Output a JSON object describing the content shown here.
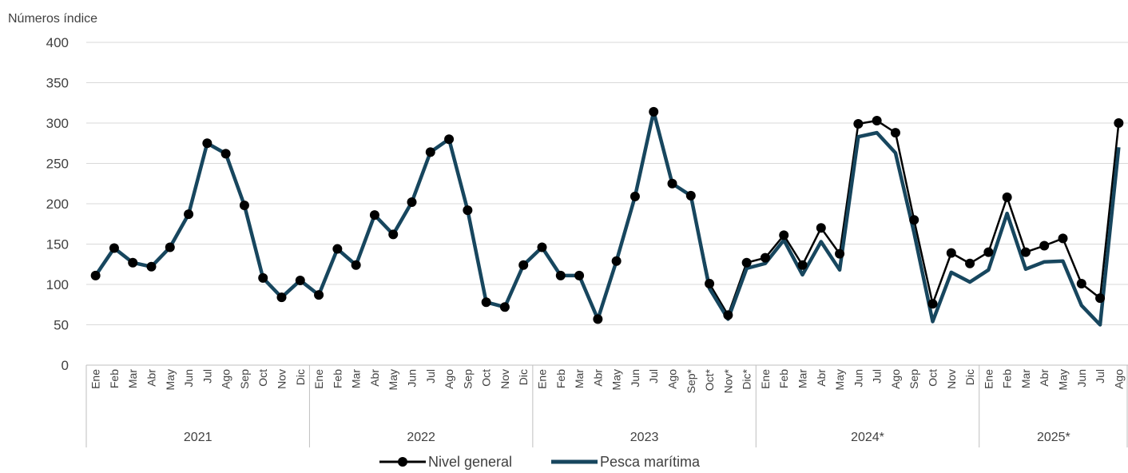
{
  "colors": {
    "nivel_general": "#000000",
    "pesca_maritima": "#17465e",
    "grid": "#d9d9d9",
    "axis_text": "#404040"
  },
  "chart_data": {
    "type": "line",
    "ylabel": "Números índice",
    "ylim": [
      0,
      400
    ],
    "yticks": [
      0,
      50,
      100,
      150,
      200,
      250,
      300,
      350,
      400
    ],
    "grid": "horizontal",
    "legend": "bottom",
    "x": [
      "Ene",
      "Feb",
      "Mar",
      "Abr",
      "May",
      "Jun",
      "Jul",
      "Ago",
      "Sep",
      "Oct",
      "Nov",
      "Dic",
      "Ene",
      "Feb",
      "Mar",
      "Abr",
      "May",
      "Jun",
      "Jul",
      "Ago",
      "Sep",
      "Oct",
      "Nov",
      "Dic",
      "Ene",
      "Feb",
      "Mar",
      "Abr",
      "May",
      "Jun",
      "Jul",
      "Ago",
      "Sep*",
      "Oct*",
      "Nov*",
      "Dic*",
      "Ene",
      "Feb",
      "Mar",
      "Abr",
      "May",
      "Jun",
      "Jul",
      "Ago",
      "Sep",
      "Oct",
      "Nov",
      "Dic",
      "Ene",
      "Feb",
      "Mar",
      "Abr",
      "May",
      "Jun",
      "Jul",
      "Ago"
    ],
    "groups": [
      {
        "label": "2021",
        "count": 12
      },
      {
        "label": "2022",
        "count": 12
      },
      {
        "label": "2023",
        "count": 12
      },
      {
        "label": "2024*",
        "count": 12
      },
      {
        "label": "2025*",
        "count": 8
      }
    ],
    "series": [
      {
        "name": "Nivel general",
        "marker": "circle",
        "values": [
          111,
          145,
          127,
          122,
          146,
          187,
          275,
          262,
          198,
          108,
          84,
          105,
          87,
          144,
          124,
          186,
          162,
          202,
          264,
          280,
          192,
          78,
          72,
          124,
          146,
          111,
          111,
          57,
          129,
          209,
          314,
          225,
          210,
          101,
          62,
          127,
          133,
          161,
          124,
          170,
          138,
          299,
          303,
          288,
          180,
          76,
          139,
          126,
          140,
          208,
          140,
          148,
          157,
          101,
          83,
          300
        ]
      },
      {
        "name": "Pesca marítima",
        "marker": "none",
        "values": [
          111,
          145,
          127,
          122,
          146,
          187,
          275,
          262,
          198,
          108,
          84,
          105,
          87,
          144,
          124,
          186,
          162,
          202,
          264,
          280,
          192,
          78,
          72,
          124,
          146,
          111,
          111,
          57,
          129,
          209,
          314,
          225,
          210,
          95,
          57,
          120,
          126,
          155,
          112,
          153,
          118,
          283,
          288,
          263,
          164,
          54,
          115,
          103,
          118,
          188,
          119,
          128,
          129,
          74,
          50,
          270
        ]
      }
    ]
  }
}
